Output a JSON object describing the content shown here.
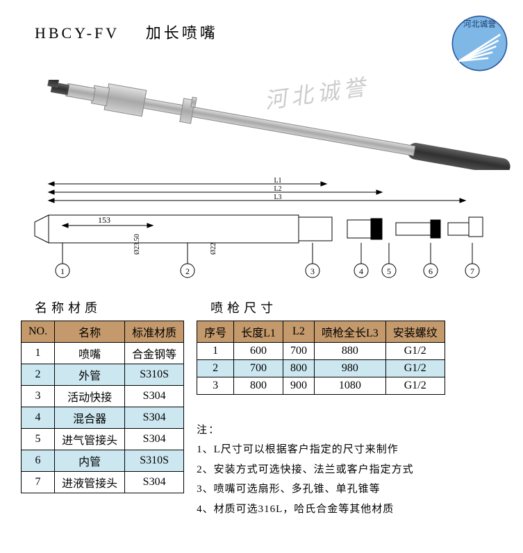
{
  "header": {
    "model": "HBCY-FV",
    "title": "加长喷嘴",
    "logo_text": "河北诚誉",
    "logo_bg": "#7fb8e6",
    "logo_stroke": "#ffffff"
  },
  "watermark": "河北诚誉",
  "drawing": {
    "dim_label": "153",
    "diam1": "Ø23.50",
    "diam2": "Ø22",
    "callouts": [
      "1",
      "2",
      "3",
      "4",
      "5",
      "6",
      "7"
    ]
  },
  "material_table": {
    "title": "名称材质",
    "headers": [
      "NO.",
      "名称",
      "标准材质"
    ],
    "rows": [
      {
        "no": "1",
        "name": "喷嘴",
        "mat": "合金钢等",
        "alt": false
      },
      {
        "no": "2",
        "name": "外管",
        "mat": "S310S",
        "alt": true
      },
      {
        "no": "3",
        "name": "活动快接",
        "mat": "S304",
        "alt": false
      },
      {
        "no": "4",
        "name": "混合器",
        "mat": "S304",
        "alt": true
      },
      {
        "no": "5",
        "name": "进气管接头",
        "mat": "S304",
        "alt": false
      },
      {
        "no": "6",
        "name": "内管",
        "mat": "S310S",
        "alt": true
      },
      {
        "no": "7",
        "name": "进液管接头",
        "mat": "S304",
        "alt": false
      }
    ]
  },
  "size_table": {
    "title": "喷枪尺寸",
    "headers": [
      "序号",
      "长度L1",
      "L2",
      "喷枪全长L3",
      "安装螺纹"
    ],
    "rows": [
      {
        "seq": "1",
        "l1": "600",
        "l2": "700",
        "l3": "880",
        "th": "G1/2",
        "alt": false
      },
      {
        "seq": "2",
        "l1": "700",
        "l2": "800",
        "l3": "980",
        "th": "G1/2",
        "alt": true
      },
      {
        "seq": "3",
        "l1": "800",
        "l2": "900",
        "l3": "1080",
        "th": "G1/2",
        "alt": false
      }
    ]
  },
  "notes": {
    "title": "注：",
    "items": [
      "1、L尺寸可以根据客户指定的尺寸来制作",
      "2、安装方式可选快接、法兰或客户指定方式",
      "3、喷嘴可选扇形、多孔锥、单孔锥等",
      "4、材质可选316L，哈氏合金等其他材质"
    ]
  },
  "colors": {
    "header_bg": "#c49a6c",
    "alt_bg": "#cce7f0",
    "border": "#000000",
    "watermark": "#cccccc"
  }
}
